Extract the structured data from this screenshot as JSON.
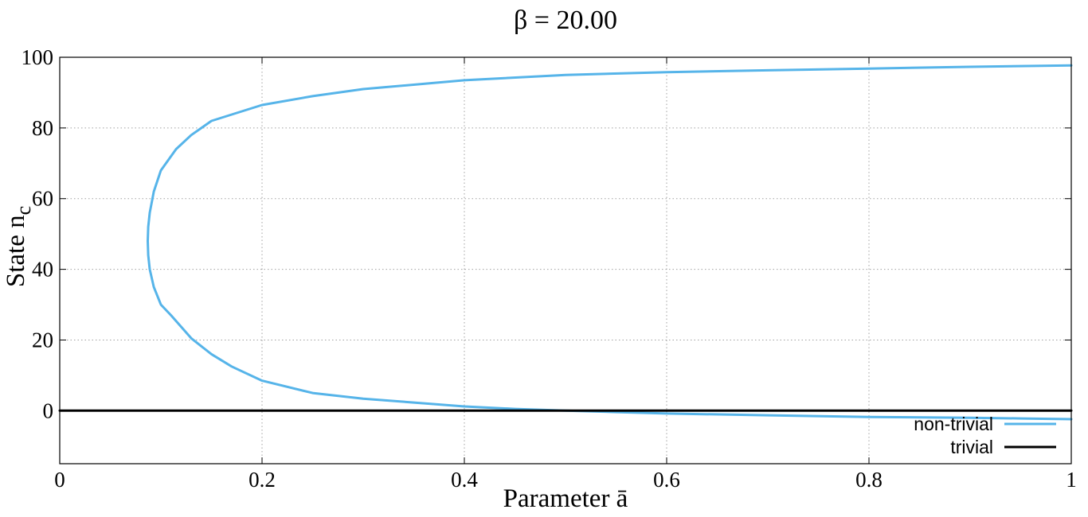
{
  "chart_data": {
    "type": "line",
    "title": "β = 20.00",
    "xlabel": "Parameter ā",
    "ylabel": "State n",
    "ylabel_subscript": "c",
    "xlim": [
      0,
      1
    ],
    "ylim": [
      -15,
      100
    ],
    "x_ticks": [
      0,
      0.2,
      0.4,
      0.6,
      0.8,
      1
    ],
    "x_tick_labels": [
      "0",
      "0.2",
      "0.4",
      "0.6",
      "0.8",
      "1"
    ],
    "y_ticks": [
      0,
      20,
      40,
      60,
      80,
      100
    ],
    "y_tick_labels": [
      "0",
      "20",
      "40",
      "60",
      "80",
      "100"
    ],
    "grid": true,
    "legend_position": "bottom-right",
    "series": [
      {
        "name": "non-trivial",
        "color": "#56b4e9",
        "points": [
          [
            1.0,
            -2.4
          ],
          [
            0.95,
            -2.2
          ],
          [
            0.9,
            -2.0
          ],
          [
            0.8,
            -1.8
          ],
          [
            0.7,
            -1.3
          ],
          [
            0.6,
            -0.8
          ],
          [
            0.55,
            -0.4
          ],
          [
            0.5,
            0.0
          ],
          [
            0.45,
            0.5
          ],
          [
            0.4,
            1.2
          ],
          [
            0.35,
            2.3
          ],
          [
            0.3,
            3.4
          ],
          [
            0.25,
            5.0
          ],
          [
            0.2,
            8.5
          ],
          [
            0.17,
            12.5
          ],
          [
            0.15,
            16.0
          ],
          [
            0.13,
            20.5
          ],
          [
            0.11,
            27.0
          ],
          [
            0.1,
            30.0
          ],
          [
            0.093,
            35.0
          ],
          [
            0.089,
            40.0
          ],
          [
            0.0875,
            44.0
          ],
          [
            0.087,
            48.0
          ],
          [
            0.0875,
            52.0
          ],
          [
            0.089,
            56.0
          ],
          [
            0.093,
            62.0
          ],
          [
            0.1,
            68.0
          ],
          [
            0.115,
            74.0
          ],
          [
            0.13,
            78.0
          ],
          [
            0.15,
            82.0
          ],
          [
            0.2,
            86.5
          ],
          [
            0.25,
            89.0
          ],
          [
            0.3,
            91.0
          ],
          [
            0.4,
            93.5
          ],
          [
            0.5,
            95.0
          ],
          [
            0.6,
            95.8
          ],
          [
            0.7,
            96.3
          ],
          [
            0.8,
            96.8
          ],
          [
            0.9,
            97.3
          ],
          [
            1.0,
            97.7
          ]
        ]
      },
      {
        "name": "trivial",
        "color": "#000000",
        "points": [
          [
            0,
            0
          ],
          [
            1,
            0
          ]
        ]
      }
    ]
  }
}
